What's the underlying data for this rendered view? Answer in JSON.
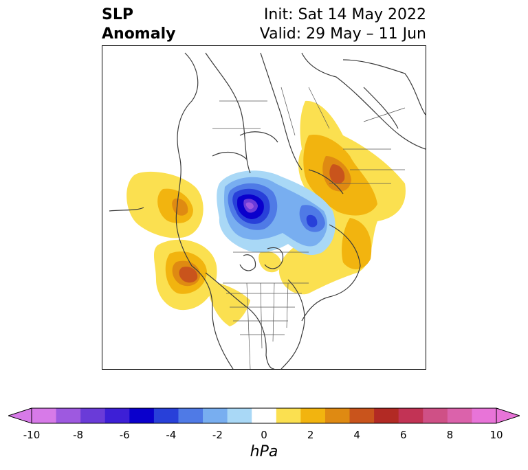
{
  "header": {
    "variable_line1": "SLP",
    "variable_line2": "Anomaly",
    "init_line": "Init: Sat 14 May 2022",
    "valid_line": "Valid: 29 May – 11 Jun"
  },
  "map": {
    "projection": "polar stereographic (North America / Arctic)",
    "features": [
      "coastlines",
      "country borders",
      "state/province borders",
      "filled SLP anomaly contours"
    ]
  },
  "colorbar": {
    "units": "hPa",
    "extend": "both",
    "tick_labels": [
      "-10",
      "-8",
      "-6",
      "-4",
      "-2",
      "0",
      "2",
      "4",
      "6",
      "8",
      "10"
    ],
    "tick_values": [
      -10,
      -8,
      -6,
      -4,
      -2,
      0,
      2,
      4,
      6,
      8,
      10
    ],
    "levels": [
      -10,
      -9,
      -8,
      -7,
      -6,
      -5,
      -4,
      -3,
      -2,
      -1,
      1,
      2,
      3,
      4,
      5,
      6,
      7,
      8,
      9,
      10
    ],
    "colors": [
      "#d77ae8",
      "#9e59e0",
      "#6a3bd8",
      "#3d1fd6",
      "#0a00cc",
      "#2840d9",
      "#4f7ae6",
      "#78aef0",
      "#a9d8f6",
      "#ffffff",
      "#fbe050",
      "#f2b40f",
      "#df8a12",
      "#c9541c",
      "#b22a24",
      "#c23355",
      "#cf5086",
      "#db62ab",
      "#e874d8"
    ],
    "under_color": "#d77ae8",
    "over_color": "#e874d8"
  }
}
